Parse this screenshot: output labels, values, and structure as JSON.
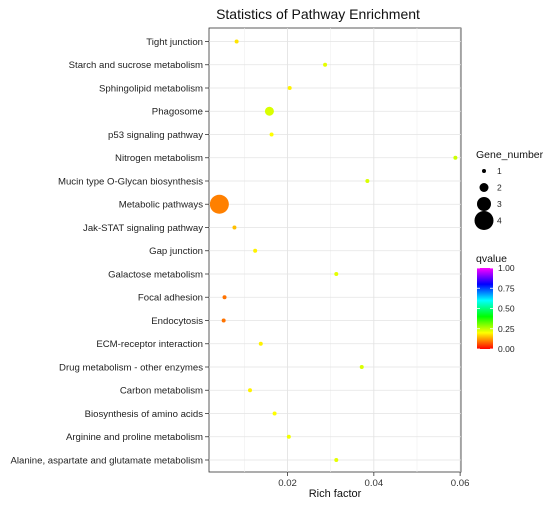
{
  "chart_data": {
    "type": "scatter",
    "title": "Statistics of Pathway Enrichment",
    "xlabel": "Rich factor",
    "ylabel": "",
    "xlim": [
      0.0018,
      0.0602
    ],
    "xticks": [
      "0.02",
      "0.04",
      "0.06"
    ],
    "grid": true,
    "categories": [
      "Tight junction",
      "Starch and sucrose metabolism",
      "Sphingolipid metabolism",
      "Phagosome",
      "p53 signaling pathway",
      "Nitrogen metabolism",
      "Mucin type O-Glycan biosynthesis",
      "Metabolic pathways",
      "Jak-STAT signaling pathway",
      "Gap junction",
      "Galactose metabolism",
      "Focal adhesion",
      "Endocytosis",
      "ECM-receptor interaction",
      "Drug metabolism - other enzymes",
      "Carbon metabolism",
      "Biosynthesis of amino acids",
      "Arginine and proline metabolism",
      "Alanine, aspartate and glutamate metabolism"
    ],
    "points": [
      {
        "pathway": "Tight junction",
        "rich_factor": 0.0082,
        "gene_number": 1,
        "qvalue": 0.18
      },
      {
        "pathway": "Starch and sucrose metabolism",
        "rich_factor": 0.0287,
        "gene_number": 1,
        "qvalue": 0.22
      },
      {
        "pathway": "Sphingolipid metabolism",
        "rich_factor": 0.0205,
        "gene_number": 1,
        "qvalue": 0.19
      },
      {
        "pathway": "Phagosome",
        "rich_factor": 0.0158,
        "gene_number": 2,
        "qvalue": 0.23
      },
      {
        "pathway": "p53 signaling pathway",
        "rich_factor": 0.0163,
        "gene_number": 1,
        "qvalue": 0.2
      },
      {
        "pathway": "Nitrogen metabolism",
        "rich_factor": 0.0589,
        "gene_number": 1,
        "qvalue": 0.24
      },
      {
        "pathway": "Mucin type O-Glycan biosynthesis",
        "rich_factor": 0.0385,
        "gene_number": 1,
        "qvalue": 0.23
      },
      {
        "pathway": "Metabolic pathways",
        "rich_factor": 0.0042,
        "gene_number": 4,
        "qvalue": 0.1
      },
      {
        "pathway": "Jak-STAT signaling pathway",
        "rich_factor": 0.0077,
        "gene_number": 1,
        "qvalue": 0.15
      },
      {
        "pathway": "Gap junction",
        "rich_factor": 0.0125,
        "gene_number": 1,
        "qvalue": 0.19
      },
      {
        "pathway": "Galactose metabolism",
        "rich_factor": 0.0313,
        "gene_number": 1,
        "qvalue": 0.22
      },
      {
        "pathway": "Focal adhesion",
        "rich_factor": 0.0054,
        "gene_number": 1,
        "qvalue": 0.09
      },
      {
        "pathway": "Endocytosis",
        "rich_factor": 0.0052,
        "gene_number": 1,
        "qvalue": 0.09
      },
      {
        "pathway": "ECM-receptor interaction",
        "rich_factor": 0.0138,
        "gene_number": 1,
        "qvalue": 0.19
      },
      {
        "pathway": "Drug metabolism - other enzymes",
        "rich_factor": 0.0372,
        "gene_number": 1,
        "qvalue": 0.23
      },
      {
        "pathway": "Carbon metabolism",
        "rich_factor": 0.0113,
        "gene_number": 1,
        "qvalue": 0.19
      },
      {
        "pathway": "Biosynthesis of amino acids",
        "rich_factor": 0.017,
        "gene_number": 1,
        "qvalue": 0.2
      },
      {
        "pathway": "Arginine and proline metabolism",
        "rich_factor": 0.0203,
        "gene_number": 1,
        "qvalue": 0.21
      },
      {
        "pathway": "Alanine, aspartate and glutamate metabolism",
        "rich_factor": 0.0313,
        "gene_number": 1,
        "qvalue": 0.22
      }
    ],
    "size_legend": {
      "title": "Gene_number",
      "values": [
        1,
        2,
        3,
        4
      ],
      "labels": [
        "1",
        "2",
        "3",
        "4"
      ]
    },
    "color_legend": {
      "title": "qvalue",
      "range": [
        0,
        1
      ],
      "ticks": [
        "1.00",
        "0.75",
        "0.50",
        "0.25",
        "0.00"
      ],
      "tick_values": [
        1.0,
        0.75,
        0.5,
        0.25,
        0.0
      ],
      "colors": [
        "#ff0000",
        "#ffff00",
        "#00ff00",
        "#00ffff",
        "#0000ff",
        "#ff00ff"
      ]
    }
  }
}
